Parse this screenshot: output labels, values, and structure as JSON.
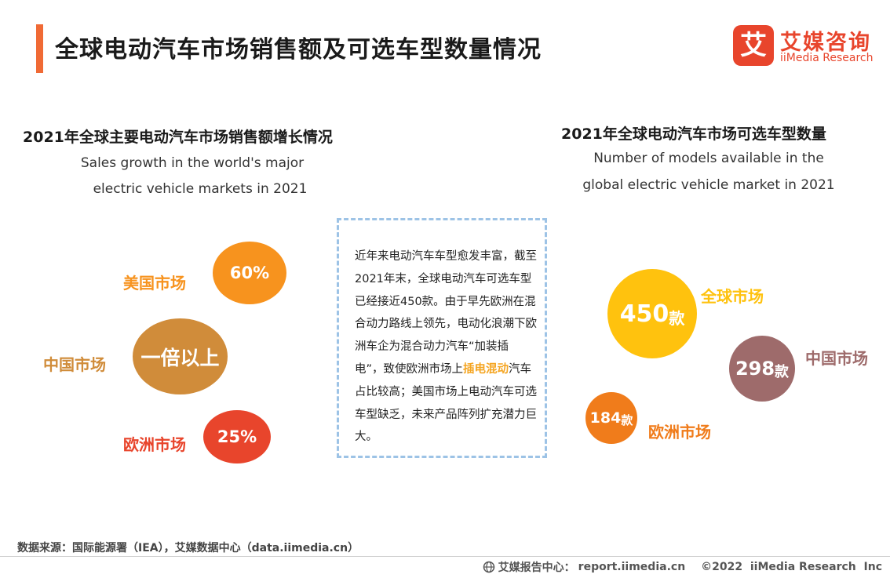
{
  "header": {
    "title": "全球电动汽车市场销售额及可选车型数量情况",
    "accent_color": "#f06a35"
  },
  "logo": {
    "mark": "艾",
    "name_cn": "艾媒咨询",
    "name_en": "iiMedia Research",
    "color": "#e8452c"
  },
  "left_section": {
    "title": "2021年全球主要电动汽车市场销售额增长情况",
    "subtitle_line1": "Sales growth in the world's major",
    "subtitle_line2": "electric vehicle markets in 2021",
    "markets": [
      {
        "label": "美国市场",
        "value": "60%",
        "color": "#f7931e"
      },
      {
        "label": "中国市场",
        "value": "一倍以上",
        "color": "#d08c3a"
      },
      {
        "label": "欧洲市场",
        "value": "25%",
        "color": "#e8452c"
      }
    ]
  },
  "text_box": {
    "before": "近年来电动汽车车型愈发丰富，截至2021年末，全球电动汽车可选车型已经接近450款。由于早先欧洲在混合动力路线上领先，电动化浪潮下欧洲车企为混合动力汽车“加装插电”，致使欧洲市场上",
    "highlight": "插电混动",
    "after": "汽车占比较高；美国市场上电动汽车可选车型缺乏，未来产品阵列扩充潜力巨大。"
  },
  "right_section": {
    "title": "2021年全球电动汽车市场可选车型数量",
    "subtitle_line1": "Number of models available in the",
    "subtitle_line2": "global electric vehicle market in 2021",
    "unit": "款",
    "markets": [
      {
        "label": "全球市场",
        "value": "450",
        "color": "#ffc20e"
      },
      {
        "label": "中国市场",
        "value": "298",
        "color": "#9e6b6b"
      },
      {
        "label": "欧洲市场",
        "value": "184",
        "color": "#f07c1b"
      }
    ]
  },
  "footer": {
    "source": "数据来源：国际能源署（IEA），艾媒数据中心（data.iimedia.cn）",
    "center_label": "艾媒报告中心：",
    "center_url": "report.iimedia.cn",
    "copyright": "©2022  iiMedia Research  Inc"
  }
}
